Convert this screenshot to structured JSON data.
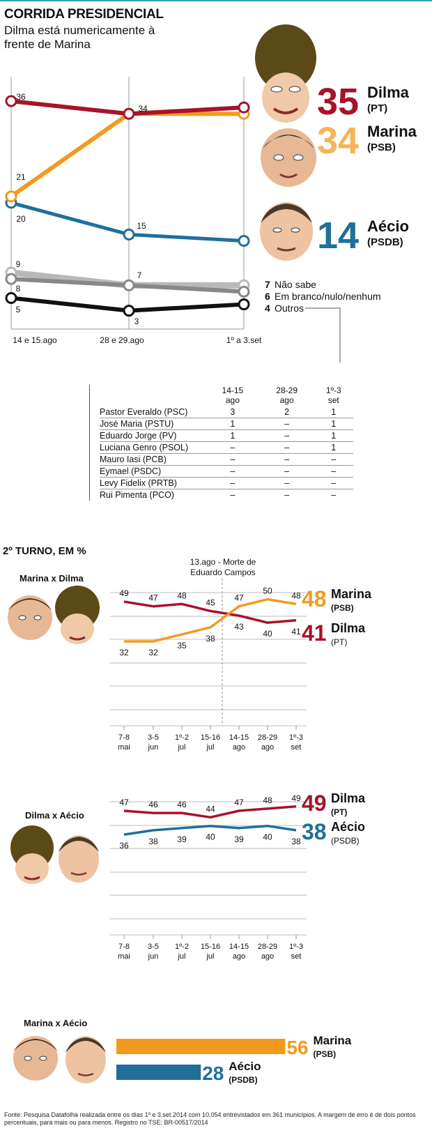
{
  "header": {
    "title": "CORRIDA PRESIDENCIAL",
    "subtitle": "Dilma está numericamente à frente de Marina"
  },
  "colors": {
    "dilma": "#a8122a",
    "marina": "#f39a1e",
    "aecio": "#1f6f9a",
    "nao_sabe": "#b8b8b8",
    "branco": "#888888",
    "outros": "#111111"
  },
  "chart_data": [
    {
      "type": "line",
      "categories": [
        "14 e 15.ago",
        "28 e 29.ago",
        "1º a 3.set"
      ],
      "ylim": [
        0,
        40
      ],
      "series": [
        {
          "name": "Dilma",
          "values": [
            36,
            34,
            35
          ]
        },
        {
          "name": "Marina",
          "values": [
            21,
            34,
            34
          ]
        },
        {
          "name": "Aécio",
          "values": [
            20,
            15,
            14
          ]
        },
        {
          "name": "Não sabe",
          "values": [
            9,
            7,
            7
          ]
        },
        {
          "name": "Em branco/nulo/nenhum",
          "values": [
            8,
            7,
            6
          ]
        },
        {
          "name": "Outros",
          "values": [
            5,
            3,
            4
          ]
        }
      ],
      "point_labels": {
        "Dilma": [
          "36",
          "34",
          ""
        ],
        "Marina": [
          "21",
          "",
          ""
        ],
        "Aécio": [
          "20",
          "15",
          ""
        ],
        "Não sabe": [
          "9",
          "7",
          ""
        ],
        "Em branco/nulo/nenhum": [
          "8",
          "",
          ""
        ],
        "Outros": [
          "5",
          "3",
          ""
        ]
      },
      "big_labels": [
        {
          "value": "35",
          "name": "Dilma",
          "party": "(PT)"
        },
        {
          "value": "34",
          "name": "Marina",
          "party": "(PSB)"
        },
        {
          "value": "14",
          "name": "Aécio",
          "party": "(PSDB)"
        }
      ],
      "legend_small": [
        {
          "value": "7",
          "label": "Não sabe"
        },
        {
          "value": "6",
          "label": "Em branco/nulo/nenhum"
        },
        {
          "value": "4",
          "label": "Outros"
        }
      ]
    },
    {
      "type": "table",
      "columns": [
        "",
        "14-15 ago",
        "28-29 ago",
        "1º-3 set"
      ],
      "column_lines": [
        [
          "14-15",
          "ago"
        ],
        [
          "28-29",
          "ago"
        ],
        [
          "1º-3",
          "set"
        ]
      ],
      "rows": [
        [
          "Pastor Everaldo (PSC)",
          "3",
          "2",
          "1"
        ],
        [
          "José Maria (PSTU)",
          "1",
          "–",
          "1"
        ],
        [
          "Eduardo Jorge (PV)",
          "1",
          "–",
          "1"
        ],
        [
          "Luciana Genro (PSOL)",
          "–",
          "–",
          "1"
        ],
        [
          "Mauro Iasi (PCB)",
          "–",
          "–",
          "–"
        ],
        [
          "Eymael (PSDC)",
          "–",
          "–",
          "–"
        ],
        [
          "Levy Fidelix (PRTB)",
          "–",
          "–",
          "–"
        ],
        [
          "Rui Pimenta (PCO)",
          "–",
          "–",
          "–"
        ]
      ]
    },
    {
      "type": "line",
      "title": "Marina x Dilma",
      "categories": [
        [
          "7-8",
          "mai"
        ],
        [
          "3-5",
          "jun"
        ],
        [
          "1º-2",
          "jul"
        ],
        [
          "15-16",
          "jul"
        ],
        [
          "14-15",
          "ago"
        ],
        [
          "28-29",
          "ago"
        ],
        [
          "1º-3",
          "set"
        ]
      ],
      "ylim": [
        20,
        60
      ],
      "annotation": "13.ago - Morte de Eduardo Campos",
      "series": [
        {
          "name": "Dilma",
          "values": [
            49,
            47,
            48,
            45,
            43,
            40,
            41
          ]
        },
        {
          "name": "Marina",
          "values": [
            32,
            32,
            35,
            38,
            47,
            50,
            48
          ]
        }
      ],
      "big_labels": [
        {
          "value": "48",
          "name": "Marina",
          "party": "(PSB)"
        },
        {
          "value": "41",
          "name": "Dilma",
          "party": "(PT)"
        }
      ]
    },
    {
      "type": "line",
      "title": "Dilma x Aécio",
      "categories": [
        [
          "7-8",
          "mai"
        ],
        [
          "3-5",
          "jun"
        ],
        [
          "1º-2",
          "jul"
        ],
        [
          "15-16",
          "jul"
        ],
        [
          "14-15",
          "ago"
        ],
        [
          "28-29",
          "ago"
        ],
        [
          "1º-3",
          "set"
        ]
      ],
      "ylim": [
        20,
        60
      ],
      "series": [
        {
          "name": "Dilma",
          "values": [
            47,
            46,
            46,
            44,
            47,
            48,
            49
          ]
        },
        {
          "name": "Aécio",
          "values": [
            36,
            38,
            39,
            40,
            39,
            40,
            38
          ]
        }
      ],
      "big_labels": [
        {
          "value": "49",
          "name": "Dilma",
          "party": "(PT)"
        },
        {
          "value": "38",
          "name": "Aécio",
          "party": "(PSDB)"
        }
      ]
    },
    {
      "type": "bar",
      "title": "Marina x Aécio",
      "categories": [
        "Marina",
        "Aécio"
      ],
      "values": [
        56,
        28
      ],
      "parties": [
        "(PSB)",
        "(PSDB)"
      ]
    }
  ],
  "second_round": {
    "title": "2º TURNO, EM %"
  },
  "source": "Fonte: Pesquisa Datafolha realizada entre os dias 1º e 3.set.2014 com 10.054 entrevistados em 361 municípios. A margem de erro é de dois pontos percentuais, para mais ou para menos. Registro no TSE: BR-00517/2014",
  "icons": [
    "dilma-caricature-icon",
    "marina-caricature-icon",
    "aecio-caricature-icon"
  ]
}
